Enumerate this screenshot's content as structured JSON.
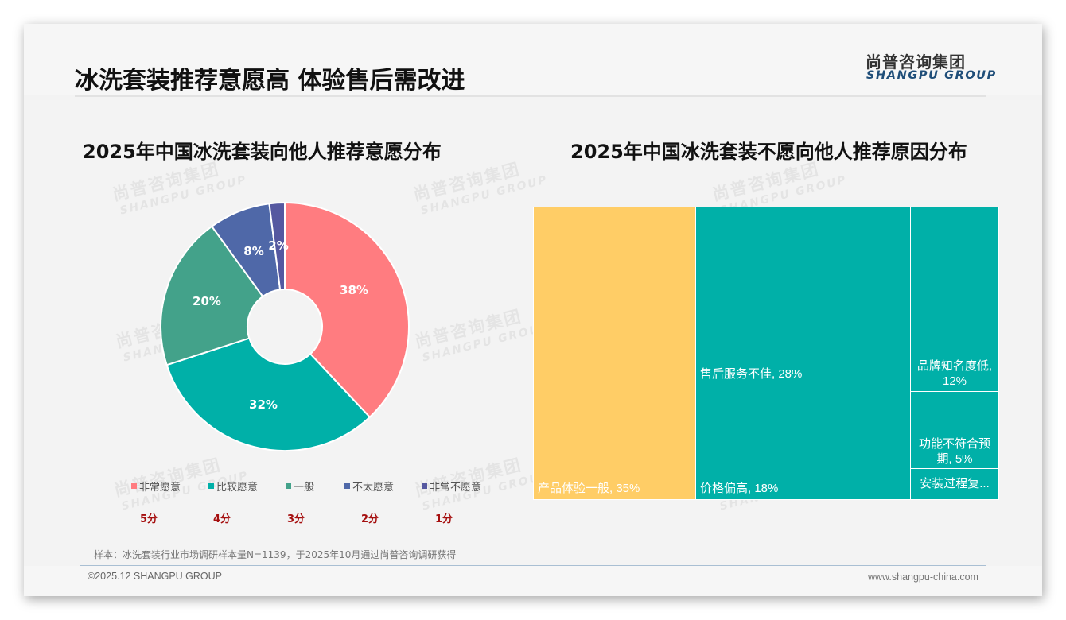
{
  "header": {
    "title": "冰洗套装推荐意愿高 体验售后需改进",
    "logo_cn": "尚普咨询集团",
    "logo_en": "SHANGPU GROUP"
  },
  "watermark": {
    "cn": "尚普咨询集团",
    "en": "SHANGPU GROUP"
  },
  "left_chart": {
    "title": "2025年中国冰洗套装向他人推荐意愿分布",
    "legend": [
      {
        "label": "非常愿意",
        "color": "#ff7c80",
        "score": "5分"
      },
      {
        "label": "比较愿意",
        "color": "#00b0a8",
        "score": "4分"
      },
      {
        "label": "一般",
        "color": "#43a28a",
        "score": "3分"
      },
      {
        "label": "不太愿意",
        "color": "#4f68a8",
        "score": "2分"
      },
      {
        "label": "非常不愿意",
        "color": "#5558a0",
        "score": "1分"
      }
    ],
    "labels": [
      "38%",
      "32%",
      "20%",
      "8%",
      "2%"
    ]
  },
  "right_chart": {
    "title": "2025年中国冰洗套装不愿向他人推荐原因分布",
    "cells": [
      {
        "label": "产品体验一般, 35%",
        "color": "#ffcd66"
      },
      {
        "label": "售后服务不佳, 28%",
        "color": "#00b0a8"
      },
      {
        "label": "价格偏高, 18%",
        "color": "#00b0a8"
      },
      {
        "label_line1": "品牌知名度低,",
        "label_line2": "12%",
        "color": "#00b0a8"
      },
      {
        "label_line1": "功能不符合预",
        "label_line2": "期, 5%",
        "color": "#00b0a8"
      },
      {
        "label": "安装过程复...",
        "color": "#00b0a8"
      }
    ]
  },
  "footer": {
    "note": "样本：冰洗套装行业市场调研样本量N=1139，于2025年10月通过尚普咨询调研获得",
    "copyright": "©2025.12 SHANGPU GROUP",
    "website": "www.shangpu-china.com"
  },
  "chart_data": [
    {
      "type": "pie",
      "title": "2025年中国冰洗套装向他人推荐意愿分布",
      "categories": [
        "非常愿意",
        "比较愿意",
        "一般",
        "不太愿意",
        "非常不愿意"
      ],
      "scores": [
        "5分",
        "4分",
        "3分",
        "2分",
        "1分"
      ],
      "values": [
        38,
        32,
        20,
        8,
        2
      ],
      "unit": "%",
      "colors": [
        "#ff7c80",
        "#00b0a8",
        "#43a28a",
        "#4f68a8",
        "#5558a0"
      ],
      "donut": true,
      "legend_position": "bottom"
    },
    {
      "type": "treemap",
      "title": "2025年中国冰洗套装不愿向他人推荐原因分布",
      "categories": [
        "产品体验一般",
        "售后服务不佳",
        "价格偏高",
        "品牌知名度低",
        "功能不符合预期",
        "安装过程复..."
      ],
      "values": [
        35,
        28,
        18,
        12,
        5,
        2
      ],
      "unit": "%",
      "colors": [
        "#ffcd66",
        "#00b0a8",
        "#00b0a8",
        "#00b0a8",
        "#00b0a8",
        "#00b0a8"
      ]
    }
  ]
}
